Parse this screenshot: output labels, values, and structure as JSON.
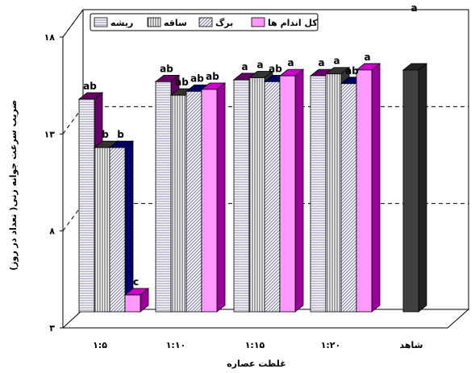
{
  "chart_data": {
    "type": "bar",
    "xlabel": "غلظت عصاره",
    "ylabel": "ضریب سرعت جوانه زنی( تعداد در روز)",
    "ylim": [
      3,
      18
    ],
    "yticks": [
      3,
      8,
      13,
      18
    ],
    "ytick_labels": [
      "۳",
      "۸",
      "۱۳",
      "۱۸"
    ],
    "categories": [
      "1:5",
      "1:10",
      "1:15",
      "1:20",
      "control"
    ],
    "category_labels": [
      "۱:۵",
      "۱:۱۰",
      "۱:۱۵",
      "۱:۲۰",
      "شاهد"
    ],
    "grid": "horizontal dashed",
    "legend_placement": "top-left",
    "series": [
      {
        "name": "ریشه",
        "values": [
          14.8,
          15.7,
          15.8,
          16.0,
          null
        ],
        "letters": [
          "ab",
          "ab",
          "a",
          "a",
          null
        ],
        "color": "#c8c8f0",
        "pattern": "hlines"
      },
      {
        "name": "ساقه",
        "values": [
          12.3,
          15.0,
          15.9,
          16.1,
          null
        ],
        "letters": [
          "b",
          "ab",
          "a",
          "a",
          null
        ],
        "color": "#ffffff",
        "pattern": "vlines"
      },
      {
        "name": "برگ",
        "values": [
          12.3,
          15.2,
          15.7,
          15.6,
          null
        ],
        "letters": [
          "b",
          "ab",
          "ab",
          "ab",
          null
        ],
        "color": "#e6e6ff",
        "pattern": "diag"
      },
      {
        "name": "کل اندام ها",
        "values": [
          4.7,
          15.3,
          16.0,
          16.3,
          null
        ],
        "letters": [
          "c",
          "ab",
          "a",
          "a",
          null
        ],
        "color": "#ff99ff",
        "pattern": "solid"
      }
    ],
    "control": {
      "value": 16.3,
      "letter": "a",
      "color": "#404040"
    }
  }
}
